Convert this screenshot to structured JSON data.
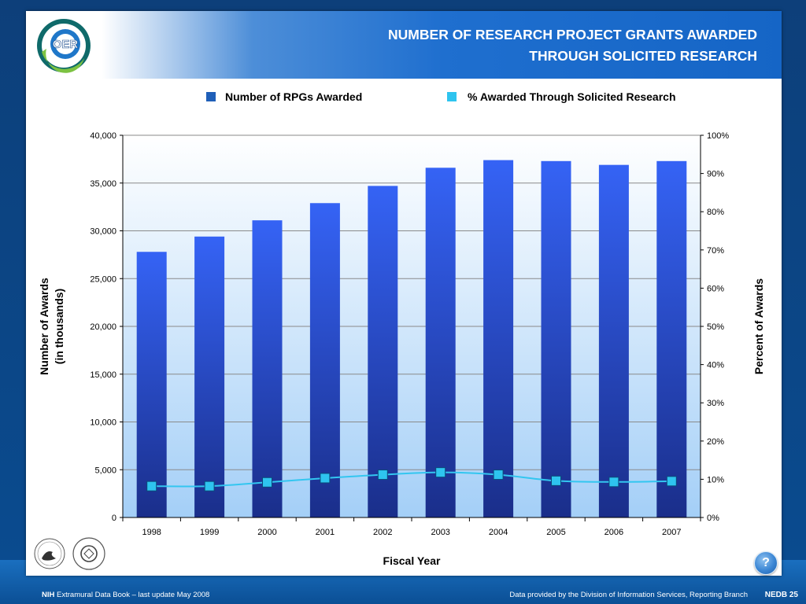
{
  "header": {
    "logo_text": "OER",
    "title_line1": "NUMBER OF RESEARCH PROJECT GRANTS AWARDED",
    "title_line2": "THROUGH SOLICITED RESEARCH"
  },
  "colors": {
    "bar_top": "#3563f5",
    "bar_bottom": "#1a2e8a",
    "line": "#33c6f0",
    "marker": "#2ec4ef",
    "plot_bg_top": "#ffffff",
    "plot_bg_bottom": "#a4cff7"
  },
  "chart_data": {
    "type": "bar",
    "categories": [
      "1998",
      "1999",
      "2000",
      "2001",
      "2002",
      "2003",
      "2004",
      "2005",
      "2006",
      "2007"
    ],
    "series": [
      {
        "name": "Number of RPGs Awarded",
        "type": "bar",
        "axis": "left",
        "values": [
          27800,
          29400,
          31100,
          32900,
          34700,
          36600,
          37400,
          37300,
          36900,
          37300
        ]
      },
      {
        "name": "% Awarded Through Solicited Research",
        "type": "line",
        "axis": "right",
        "values": [
          8.2,
          8.2,
          9.2,
          10.3,
          11.2,
          11.8,
          11.2,
          9.6,
          9.3,
          9.5
        ]
      }
    ],
    "xlabel": "Fiscal Year",
    "ylabel_line1": "Number of Awards",
    "ylabel_line2": "(in thousands)",
    "y2label": "Percent of Awards",
    "ylim": [
      0,
      40000
    ],
    "y2lim": [
      0,
      100
    ],
    "yticks": [
      "0",
      "5,000",
      "10,000",
      "15,000",
      "20,000",
      "25,000",
      "30,000",
      "35,000",
      "40,000"
    ],
    "y2ticks": [
      "0%",
      "10%",
      "20%",
      "30%",
      "40%",
      "50%",
      "60%",
      "70%",
      "80%",
      "90%",
      "100%"
    ],
    "legend_position": "top",
    "grid": true
  },
  "footer": {
    "nih": "NIH",
    "book": "Extramural Data Book – last update May 2008",
    "source": "Data provided by the Division of Information Services, Reporting Branch",
    "page": "NEDB 25"
  },
  "help_label": "?",
  "icons": {
    "logo": "oer-logo-icon",
    "hhs": "hhs-seal-icon",
    "nih": "nih-seal-icon",
    "help": "help-icon"
  }
}
